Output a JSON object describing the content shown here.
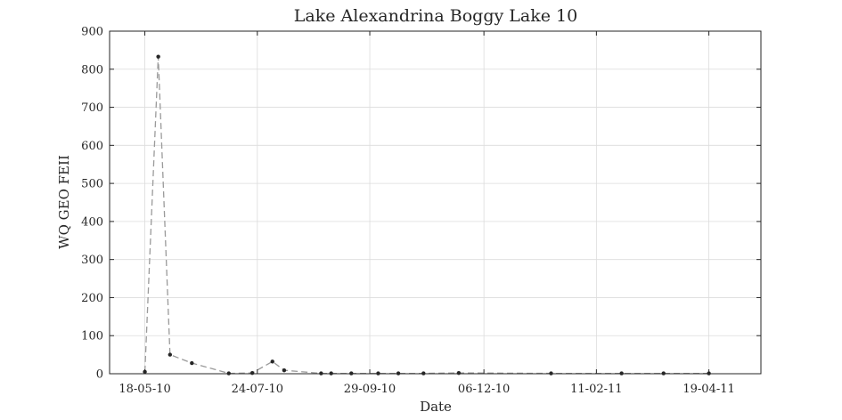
{
  "chart_data": {
    "type": "line",
    "title": "Lake Alexandrina Boggy Lake 10",
    "xlabel": "Date",
    "ylabel": "WQ GEO FEII",
    "x_ticks": [
      "18-05-10",
      "24-07-10",
      "29-09-10",
      "06-12-10",
      "11-02-11",
      "19-04-11"
    ],
    "x_tick_dates": [
      "2010-05-18",
      "2010-07-24",
      "2010-09-29",
      "2010-12-06",
      "2011-02-11",
      "2011-04-19"
    ],
    "xlim": [
      "2010-04-27",
      "2011-05-20"
    ],
    "y_ticks": [
      0,
      100,
      200,
      300,
      400,
      500,
      600,
      700,
      800,
      900
    ],
    "ylim": [
      0,
      900
    ],
    "grid": true,
    "line_style": "dashed",
    "line_color": "#9a9a9a",
    "marker_color": "#262626",
    "series": [
      {
        "x": [
          "2010-05-18",
          "2010-05-26",
          "2010-06-02",
          "2010-06-15",
          "2010-07-07",
          "2010-07-21",
          "2010-08-02",
          "2010-08-09",
          "2010-08-31",
          "2010-09-06",
          "2010-09-18",
          "2010-10-04",
          "2010-10-16",
          "2010-10-31",
          "2010-11-21",
          "2011-01-15",
          "2011-02-26",
          "2011-03-23",
          "2011-04-19"
        ],
        "values": [
          5,
          833,
          50,
          28,
          1,
          2,
          32,
          9,
          1,
          1,
          1,
          1,
          1,
          1,
          2,
          1,
          1,
          1,
          1
        ]
      }
    ]
  }
}
